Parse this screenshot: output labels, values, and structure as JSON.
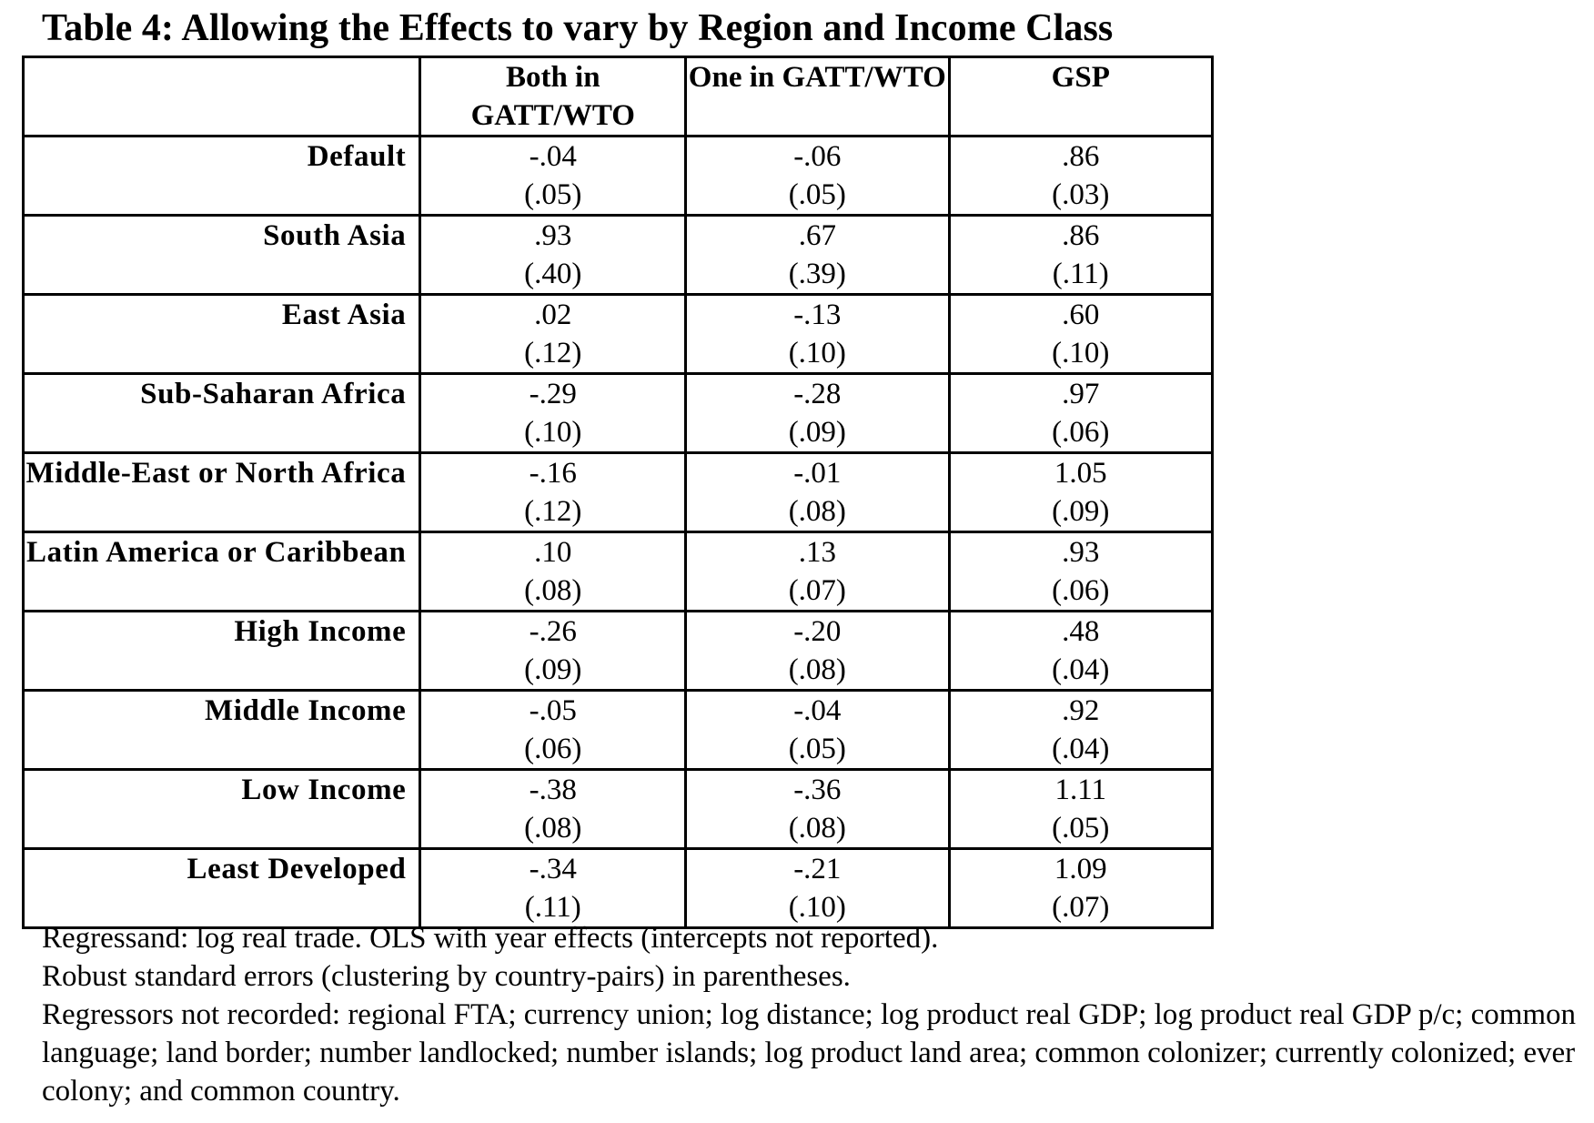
{
  "title": "Table 4: Allowing the Effects to vary by Region and Income Class",
  "columns": [
    "",
    "Both in GATT/WTO",
    "One in GATT/WTO",
    "GSP"
  ],
  "rows": [
    {
      "label": "Default",
      "cells": [
        {
          "est": "-.04",
          "se": "(.05)"
        },
        {
          "est": "-.06",
          "se": "(.05)"
        },
        {
          "est": ".86",
          "se": "(.03)"
        }
      ]
    },
    {
      "label": "South Asia",
      "cells": [
        {
          "est": ".93",
          "se": "(.40)"
        },
        {
          "est": ".67",
          "se": "(.39)"
        },
        {
          "est": ".86",
          "se": "(.11)"
        }
      ]
    },
    {
      "label": "East Asia",
      "cells": [
        {
          "est": ".02",
          "se": "(.12)"
        },
        {
          "est": "-.13",
          "se": "(.10)"
        },
        {
          "est": ".60",
          "se": "(.10)"
        }
      ]
    },
    {
      "label": "Sub-Saharan Africa",
      "cells": [
        {
          "est": "-.29",
          "se": "(.10)"
        },
        {
          "est": "-.28",
          "se": "(.09)"
        },
        {
          "est": ".97",
          "se": "(.06)"
        }
      ]
    },
    {
      "label": "Middle-East or North Africa",
      "cells": [
        {
          "est": "-.16",
          "se": "(.12)"
        },
        {
          "est": "-.01",
          "se": "(.08)"
        },
        {
          "est": "1.05",
          "se": "(.09)"
        }
      ]
    },
    {
      "label": "Latin America or Caribbean",
      "cells": [
        {
          "est": ".10",
          "se": "(.08)"
        },
        {
          "est": ".13",
          "se": "(.07)"
        },
        {
          "est": ".93",
          "se": "(.06)"
        }
      ]
    },
    {
      "label": "High Income",
      "cells": [
        {
          "est": "-.26",
          "se": "(.09)"
        },
        {
          "est": "-.20",
          "se": "(.08)"
        },
        {
          "est": ".48",
          "se": "(.04)"
        }
      ]
    },
    {
      "label": "Middle Income",
      "cells": [
        {
          "est": "-.05",
          "se": "(.06)"
        },
        {
          "est": "-.04",
          "se": "(.05)"
        },
        {
          "est": ".92",
          "se": "(.04)"
        }
      ]
    },
    {
      "label": "Low Income",
      "cells": [
        {
          "est": "-.38",
          "se": "(.08)"
        },
        {
          "est": "-.36",
          "se": "(.08)"
        },
        {
          "est": "1.11",
          "se": "(.05)"
        }
      ]
    },
    {
      "label": "Least Developed",
      "cells": [
        {
          "est": "-.34",
          "se": "(.11)"
        },
        {
          "est": "-.21",
          "se": "(.10)"
        },
        {
          "est": "1.09",
          "se": "(.07)"
        }
      ]
    }
  ],
  "notes": [
    "Regressand: log real trade.  OLS with year effects (intercepts not reported).",
    "Robust standard errors (clustering by country-pairs) in parentheses.",
    "Regressors not recorded: regional FTA; currency union; log distance; log product real GDP; log product real GDP p/c; common language; land border; number landlocked; number islands; log product land area; common colonizer; currently colonized; ever colony; and common country."
  ]
}
